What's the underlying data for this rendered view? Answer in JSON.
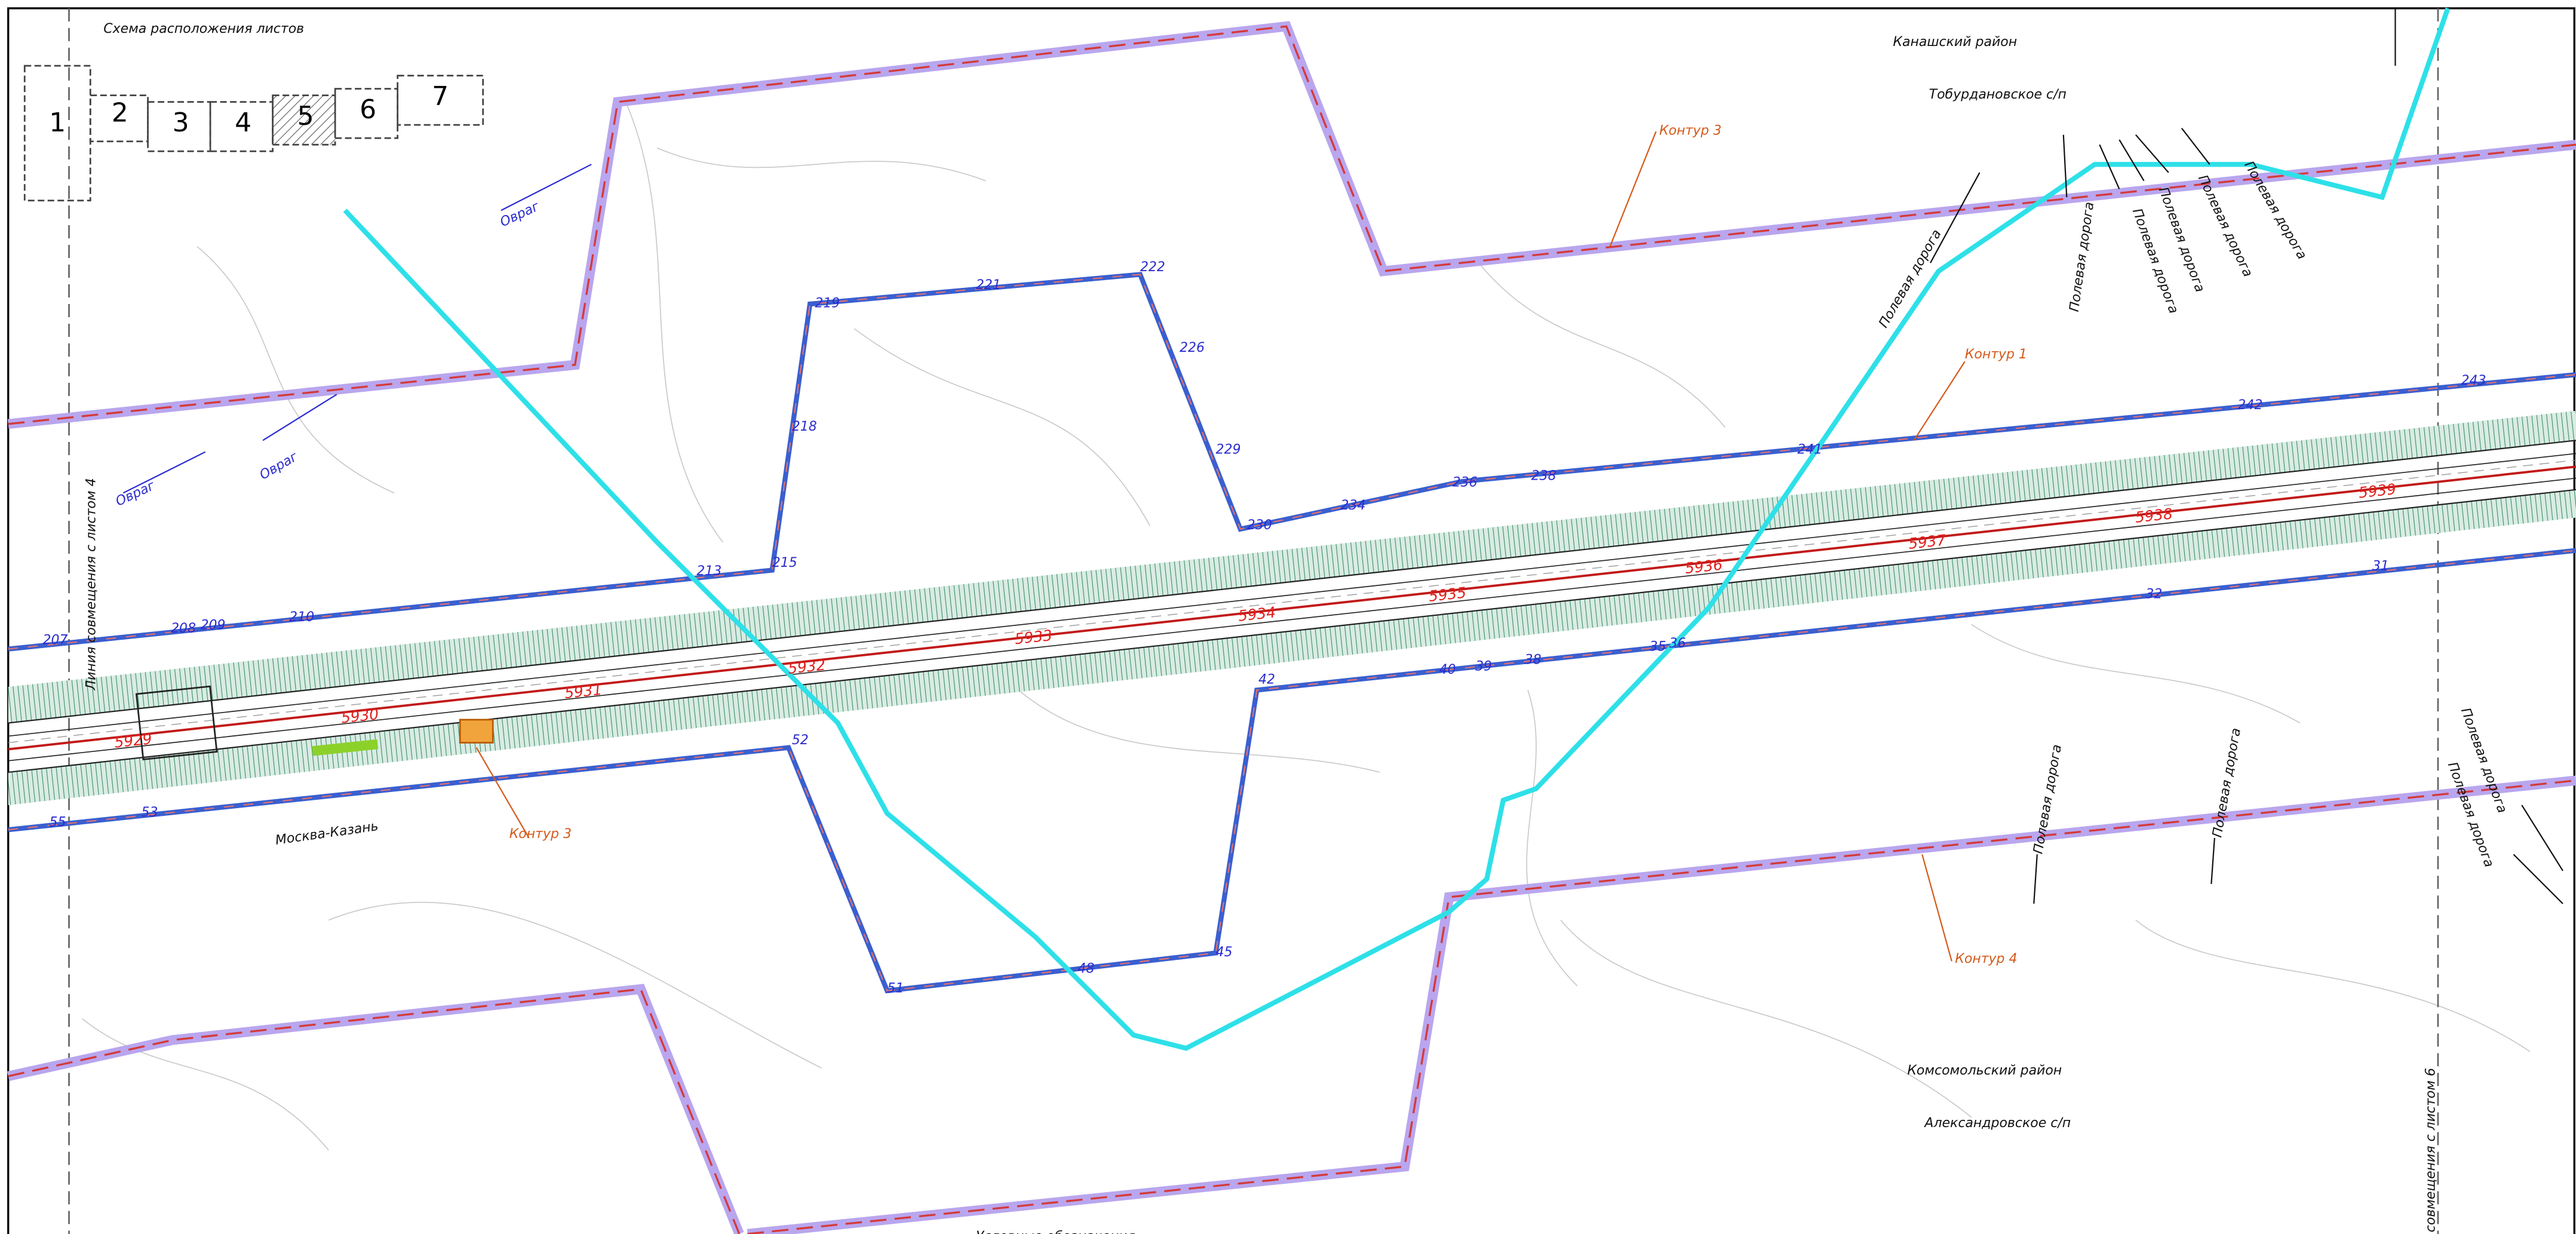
{
  "sheet_scheme": {
    "title": "Схема расположения листов",
    "sheets": [
      "1",
      "2",
      "3",
      "4",
      "5",
      "6",
      "7"
    ]
  },
  "districts": [
    {
      "name": "Канашский район",
      "settlement": "Тобурдановское с/п"
    },
    {
      "name": "Комсомольский район",
      "settlement": "Александровское с/п"
    }
  ],
  "match_lines": [
    "Линия совмещения с листом 4",
    "совмещения с листом 6"
  ],
  "contours": [
    "Контур 3",
    "Контур 1",
    "Контур 3",
    "Контур 4"
  ],
  "pickets": [
    "5929",
    "5930",
    "5931",
    "5932",
    "5933",
    "5934",
    "5935",
    "5936",
    "5937",
    "5938",
    "5939"
  ],
  "points": [
    "207",
    "208",
    "209",
    "210",
    "213",
    "215",
    "218",
    "219",
    "221",
    "222",
    "226",
    "229",
    "230",
    "234",
    "236",
    "238",
    "241",
    "242",
    "243",
    "31",
    "32",
    "35",
    "36",
    "38",
    "39",
    "40",
    "42",
    "45",
    "48",
    "51",
    "52",
    "53",
    "55"
  ],
  "ravines": [
    "Овраг",
    "Овраг",
    "Овраг"
  ],
  "field_roads": [
    "Полевая дорога",
    "Полевая дорога",
    "Полевая дорога",
    "Полевая дорога",
    "Полевая дорога",
    "Полевая дорога",
    "Полевая дорога",
    "Полевая дорога",
    "Полевая дорога",
    "Полевая дорога"
  ],
  "direction": "Москва-Казань",
  "legend_title": "Условные обозначения"
}
